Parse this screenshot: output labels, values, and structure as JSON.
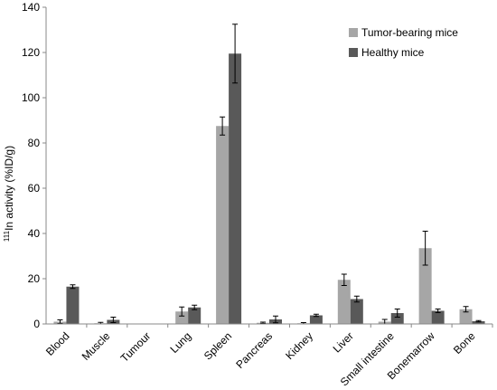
{
  "chart_data": {
    "type": "bar",
    "ylabel_sup": "111",
    "ylabel_main": "In activity (%ID/g)",
    "ylim": [
      0,
      140
    ],
    "yticks": [
      0,
      20,
      40,
      60,
      80,
      100,
      120,
      140
    ],
    "grid": false,
    "legend_position": "top-right",
    "categories": [
      "Blood",
      "Muscle",
      "Tumour",
      "Lung",
      "Spleen",
      "Pancreas",
      "Kidney",
      "Liver",
      "Small intestine",
      "Bonemarrow",
      "Bone"
    ],
    "series": [
      {
        "name": "Tumor-bearing mice",
        "color": "#a6a6a6",
        "values": [
          1.0,
          0.3,
          0,
          5.5,
          87.5,
          0.5,
          0.3,
          19.5,
          1.0,
          33.5,
          6.5
        ],
        "errors": [
          0.8,
          0.4,
          0,
          2.0,
          4.0,
          0.3,
          0.3,
          2.5,
          1.0,
          7.5,
          1.2
        ]
      },
      {
        "name": "Healthy mice",
        "color": "#595959",
        "values": [
          16.5,
          1.8,
          0,
          7.3,
          119.5,
          2.0,
          3.8,
          11.0,
          4.8,
          5.8,
          1.2
        ],
        "errors": [
          0.8,
          1.2,
          0,
          1.0,
          13.0,
          1.5,
          0.5,
          1.3,
          1.8,
          0.8,
          0.3
        ]
      }
    ]
  }
}
